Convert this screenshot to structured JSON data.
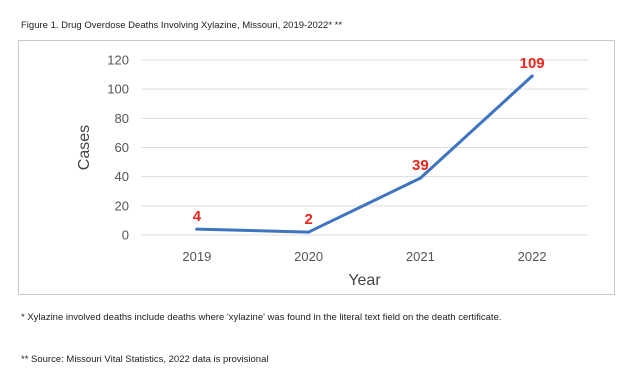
{
  "caption": "Figure 1. Drug Overdose Deaths Involving Xylazine, Missouri, 2019-2022* **",
  "footnotes": {
    "note1": "* Xylazine involved deaths include deaths where 'xylazine' was found in the literal text field on the death certificate.",
    "note2": "** Source: Missouri Vital Statistics, 2022 data is provisional"
  },
  "chart_data": {
    "type": "line",
    "title": "",
    "xlabel": "Year",
    "ylabel": "Cases",
    "categories": [
      "2019",
      "2020",
      "2021",
      "2022"
    ],
    "series": [
      {
        "values": [
          4,
          2,
          39,
          109
        ],
        "color": "#3f74c0"
      }
    ],
    "data_labels": [
      "4",
      "2",
      "39",
      "109"
    ],
    "data_label_color": "#e8261d",
    "ylim": [
      0,
      120
    ],
    "yticks": [
      0,
      20,
      40,
      60,
      80,
      100,
      120
    ],
    "grid": true,
    "grid_color": "#dddddd",
    "legend": "none"
  }
}
